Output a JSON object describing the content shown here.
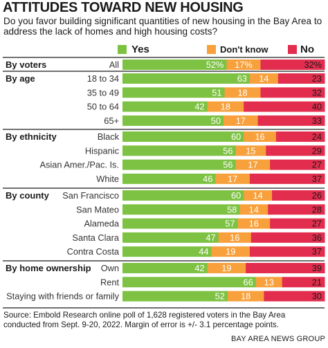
{
  "title": "ATTITUDES TOWARD NEW HOUSING",
  "subtitle": "Do you favor building significant quantities of new housing in the Bay Area to address the lack of homes and high housing costs?",
  "source": "Source: Embold Research online poll of 1,628 registered voters in the Bay Area conducted from Sept. 9-20, 2022. Margin of error is +/- 3.1 percentage points.",
  "credit": "BAY AREA NEWS GROUP",
  "colors": {
    "yes": "#7dc242",
    "dont_know": "#f7a03c",
    "no": "#e32d4e",
    "rule": "#1a1a1a"
  },
  "chart_data": {
    "type": "bar",
    "stacked": true,
    "orientation": "horizontal",
    "series": [
      {
        "name": "Yes",
        "color": "#7dc242"
      },
      {
        "name": "Don't know",
        "color": "#f7a03c"
      },
      {
        "name": "No",
        "color": "#e32d4e"
      }
    ],
    "groups": [
      {
        "name": "By voters",
        "rows": [
          {
            "label": "All",
            "values": [
              52,
              17,
              32
            ],
            "labels": [
              "52%",
              "17%",
              "32%"
            ]
          }
        ]
      },
      {
        "name": "By age",
        "rows": [
          {
            "label": "18 to 34",
            "values": [
              63,
              14,
              23
            ],
            "labels": [
              "63",
              "14",
              "23"
            ]
          },
          {
            "label": "35 to 49",
            "values": [
              51,
              18,
              32
            ],
            "labels": [
              "51",
              "18",
              "32"
            ]
          },
          {
            "label": "50 to 64",
            "values": [
              42,
              18,
              40
            ],
            "labels": [
              "42",
              "18",
              "40"
            ]
          },
          {
            "label": "65+",
            "values": [
              50,
              17,
              33
            ],
            "labels": [
              "50",
              "17",
              "33"
            ]
          }
        ]
      },
      {
        "name": "By ethnicity",
        "rows": [
          {
            "label": "Black",
            "values": [
              60,
              16,
              24
            ],
            "labels": [
              "60",
              "16",
              "24"
            ]
          },
          {
            "label": "Hispanic",
            "values": [
              56,
              15,
              29
            ],
            "labels": [
              "56",
              "15",
              "29"
            ]
          },
          {
            "label": "Asian Amer./Pac. Is.",
            "values": [
              56,
              17,
              27
            ],
            "labels": [
              "56",
              "17",
              "27"
            ]
          },
          {
            "label": "White",
            "values": [
              46,
              17,
              37
            ],
            "labels": [
              "46",
              "17",
              "37"
            ]
          }
        ]
      },
      {
        "name": "By county",
        "rows": [
          {
            "label": "San Francisco",
            "values": [
              60,
              14,
              26
            ],
            "labels": [
              "60",
              "14",
              "26"
            ]
          },
          {
            "label": "San Mateo",
            "values": [
              58,
              14,
              28
            ],
            "labels": [
              "58",
              "14",
              "28"
            ]
          },
          {
            "label": "Alameda",
            "values": [
              57,
              16,
              27
            ],
            "labels": [
              "57",
              "16",
              "27"
            ]
          },
          {
            "label": "Santa Clara",
            "values": [
              47,
              16,
              36
            ],
            "labels": [
              "47",
              "16",
              "36"
            ]
          },
          {
            "label": "Contra Costa",
            "values": [
              44,
              19,
              37
            ],
            "labels": [
              "44",
              "19",
              "37"
            ]
          }
        ]
      },
      {
        "name": "By home ownership",
        "rows": [
          {
            "label": "Own",
            "values": [
              42,
              19,
              39
            ],
            "labels": [
              "42",
              "19",
              "39"
            ]
          },
          {
            "label": "Rent",
            "values": [
              66,
              13,
              21
            ],
            "labels": [
              "66",
              "13",
              "21"
            ]
          },
          {
            "label": "Staying with friends or family",
            "values": [
              52,
              18,
              30
            ],
            "labels": [
              "52",
              "18",
              "30"
            ]
          }
        ]
      }
    ]
  }
}
